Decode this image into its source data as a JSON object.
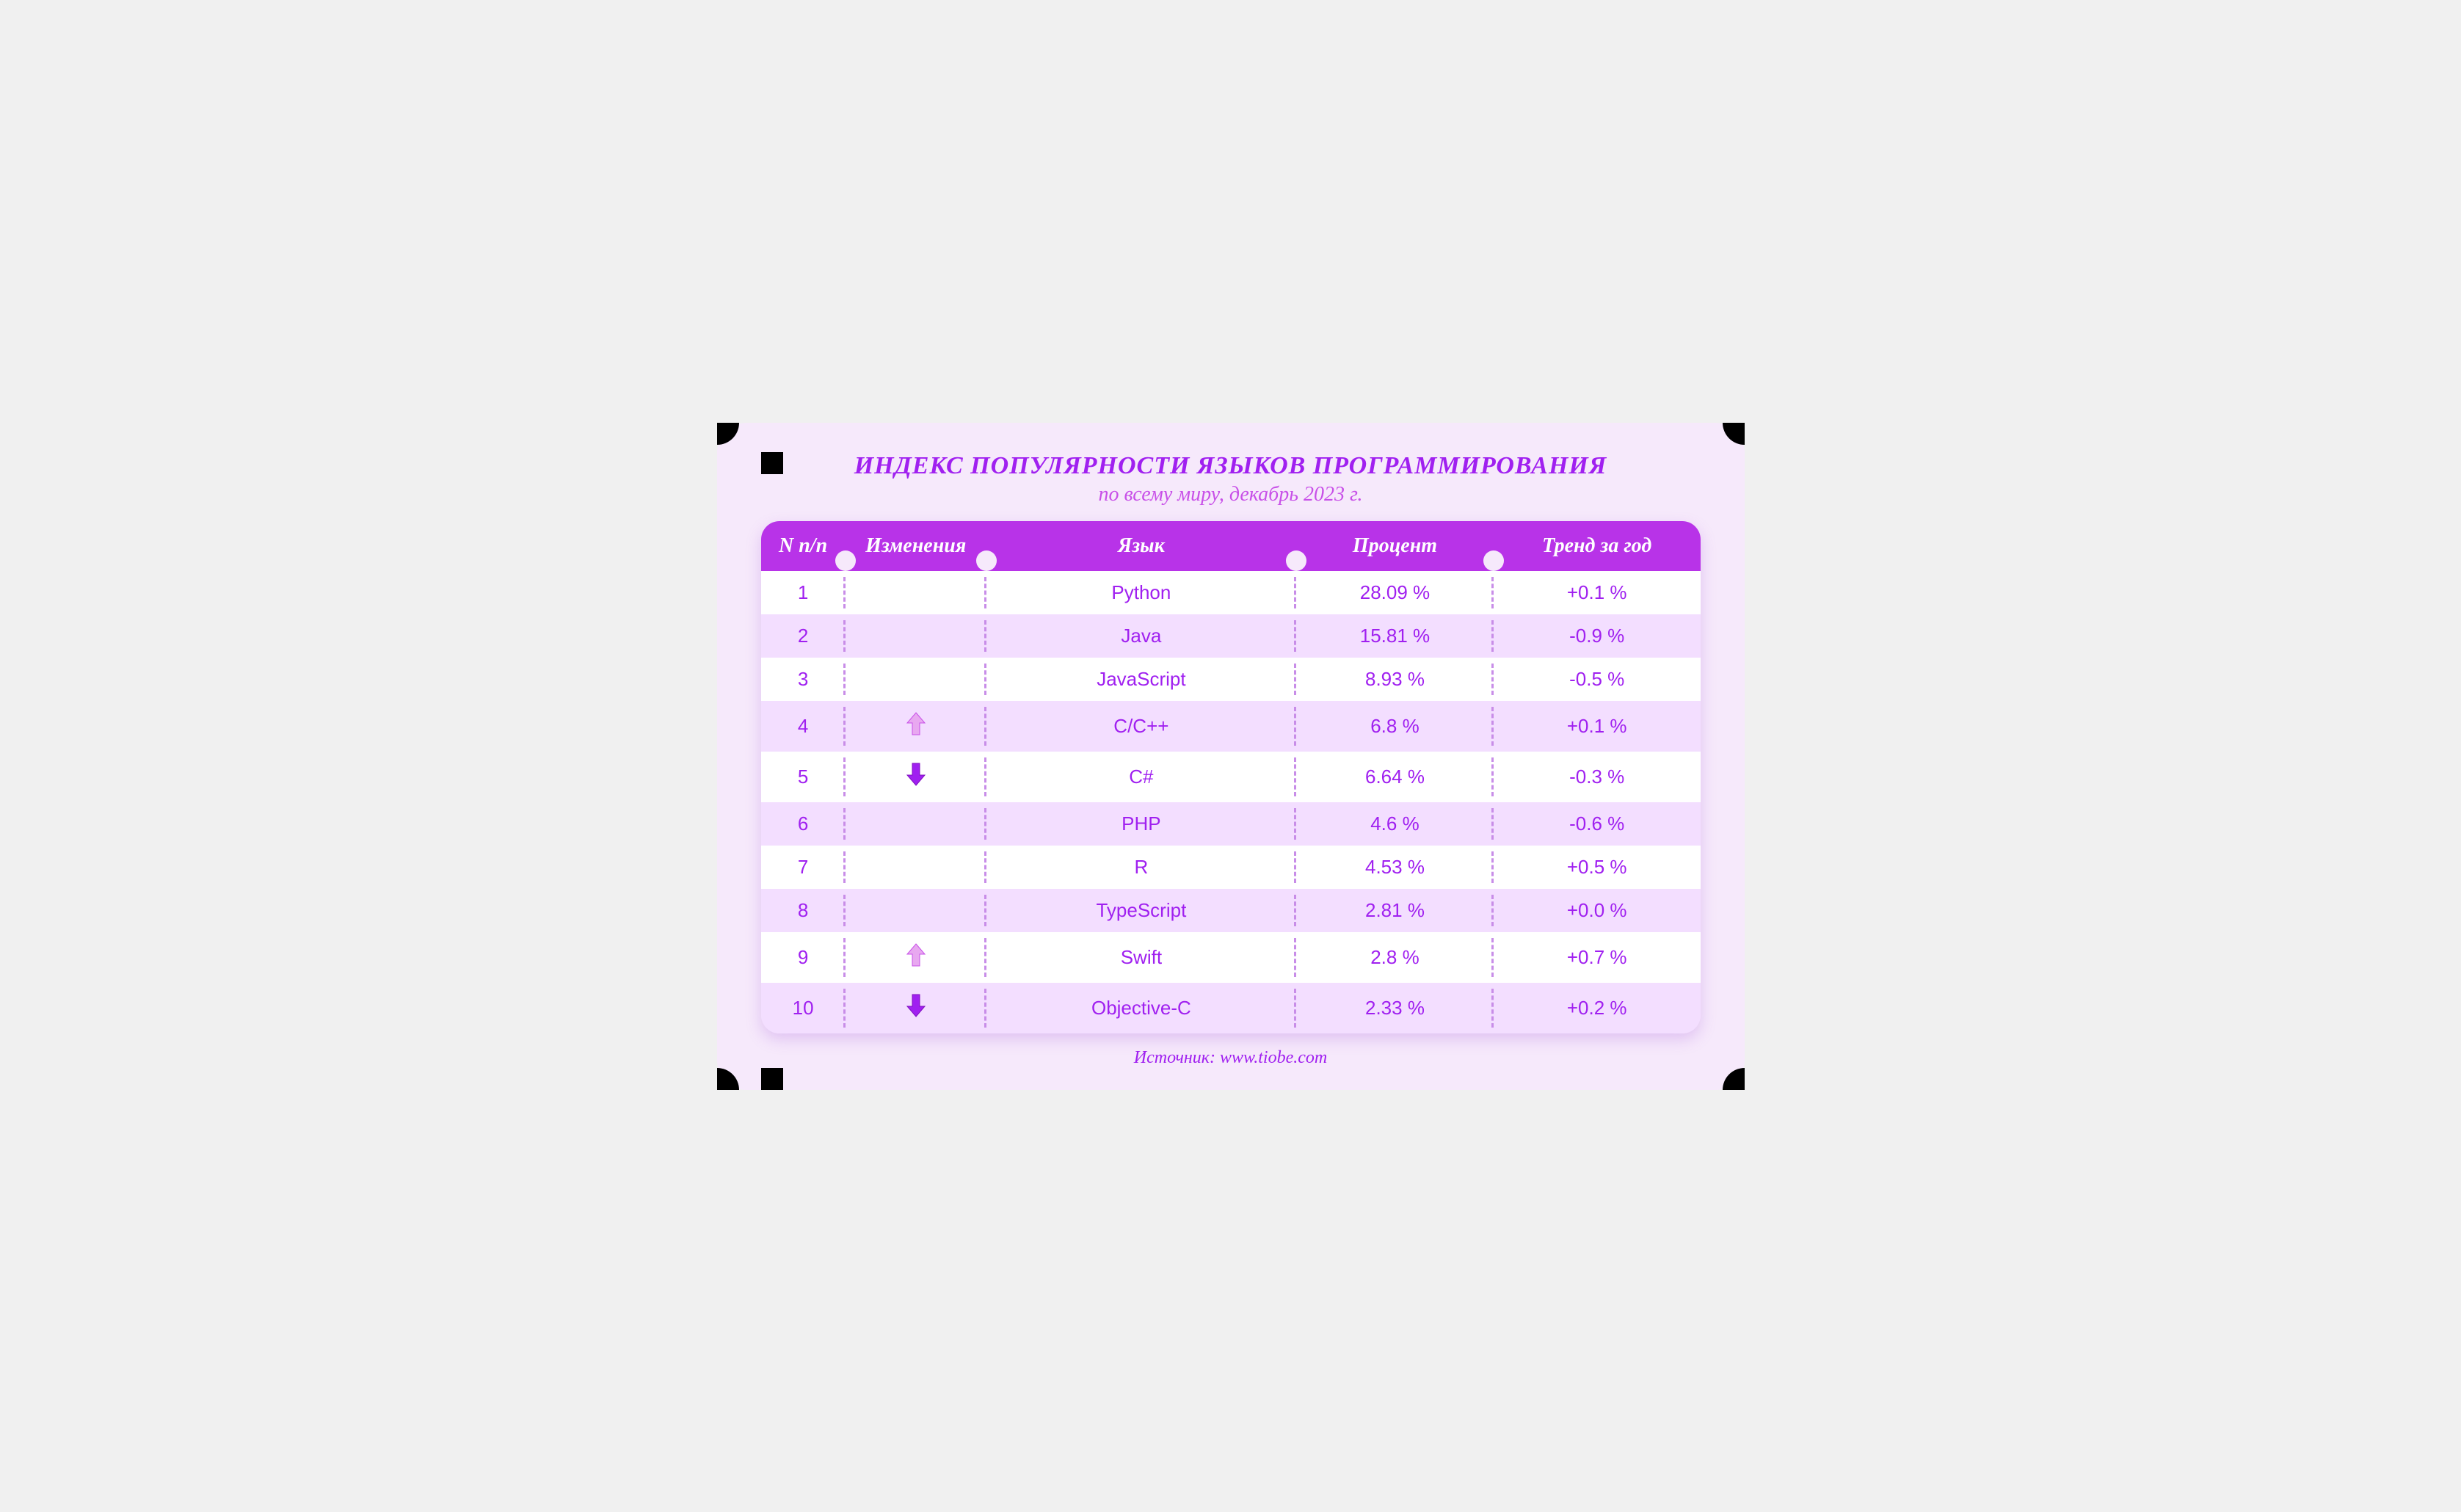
{
  "card": {
    "background": "#f6e9fb",
    "corner_notch_color": "#000000"
  },
  "title": {
    "text": "ИНДЕКС ПОПУЛЯРНОСТИ ЯЗЫКОВ ПРОГРАММИРОВАНИЯ",
    "color": "#a020f0",
    "fontsize": 34
  },
  "subtitle": {
    "text": "по всему миру, декабрь 2023 г.",
    "color": "#c850e8",
    "fontsize": 28
  },
  "source": {
    "text": "Источник: www.tiobe.com",
    "color": "#a020f0",
    "fontsize": 24
  },
  "table": {
    "type": "table",
    "header_bg": "#b833e8",
    "header_notch_color": "#f6e9fb",
    "header_fontsize": 28,
    "body_fontsize": 26,
    "row_bg_odd": "#ffffff",
    "row_bg_even": "#f3deff",
    "cell_text_color": "#a020f0",
    "divider_color": "#c88de8",
    "arrow_up_fill": "#e8a8f0",
    "arrow_up_stroke": "#c850e8",
    "arrow_down_fill": "#a020f0",
    "arrow_down_stroke": "#8010c0",
    "columns": [
      {
        "key": "rank",
        "label": "N п/п",
        "width": "9%"
      },
      {
        "key": "change",
        "label": "Изменения",
        "width": "15%"
      },
      {
        "key": "lang",
        "label": "Язык",
        "width": "33%"
      },
      {
        "key": "percent",
        "label": "Процент",
        "width": "21%"
      },
      {
        "key": "trend",
        "label": "Тренд за год",
        "width": "22%"
      }
    ],
    "rows": [
      {
        "rank": "1",
        "change": "",
        "lang": "Python",
        "percent": "28.09 %",
        "trend": "+0.1 %"
      },
      {
        "rank": "2",
        "change": "",
        "lang": "Java",
        "percent": "15.81 %",
        "trend": "-0.9 %"
      },
      {
        "rank": "3",
        "change": "",
        "lang": "JavaScript",
        "percent": "8.93 %",
        "trend": "-0.5 %"
      },
      {
        "rank": "4",
        "change": "up",
        "lang": "C/C++",
        "percent": "6.8 %",
        "trend": "+0.1 %"
      },
      {
        "rank": "5",
        "change": "down",
        "lang": "C#",
        "percent": "6.64 %",
        "trend": "-0.3 %"
      },
      {
        "rank": "6",
        "change": "",
        "lang": "PHP",
        "percent": "4.6 %",
        "trend": "-0.6 %"
      },
      {
        "rank": "7",
        "change": "",
        "lang": "R",
        "percent": "4.53 %",
        "trend": "+0.5 %"
      },
      {
        "rank": "8",
        "change": "",
        "lang": "TypeScript",
        "percent": "2.81 %",
        "trend": "+0.0 %"
      },
      {
        "rank": "9",
        "change": "up",
        "lang": "Swift",
        "percent": "2.8 %",
        "trend": "+0.7 %"
      },
      {
        "rank": "10",
        "change": "down",
        "lang": "Objective-C",
        "percent": "2.33 %",
        "trend": "+0.2 %"
      }
    ]
  }
}
